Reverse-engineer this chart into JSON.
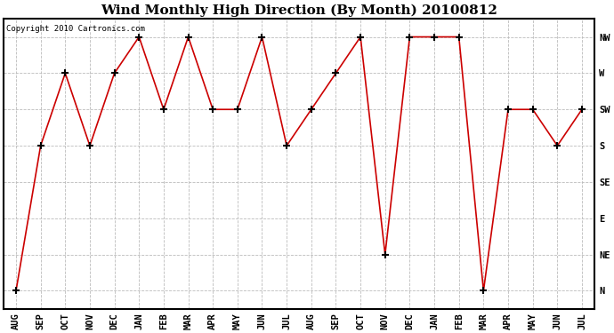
{
  "title": "Wind Monthly High Direction (By Month) 20100812",
  "copyright": "Copyright 2010 Cartronics.com",
  "x_labels": [
    "AUG",
    "SEP",
    "OCT",
    "NOV",
    "DEC",
    "JAN",
    "FEB",
    "MAR",
    "APR",
    "MAY",
    "JUN",
    "JUL",
    "AUG",
    "SEP",
    "OCT",
    "NOV",
    "DEC",
    "JAN",
    "FEB",
    "MAR",
    "APR",
    "MAY",
    "JUN",
    "JUL"
  ],
  "y_labels": [
    "N",
    "NE",
    "E",
    "SE",
    "S",
    "SW",
    "W",
    "NW"
  ],
  "y_values": [
    0,
    1,
    2,
    3,
    4,
    5,
    6,
    7
  ],
  "data_points": [
    0,
    4,
    6,
    4,
    6,
    7,
    5,
    7,
    5,
    5,
    7,
    4,
    5,
    6,
    7,
    1,
    7,
    7,
    7,
    0,
    5,
    5,
    4,
    5
  ],
  "line_color": "#cc0000",
  "marker": "+",
  "marker_color": "#000000",
  "bg_color": "#ffffff",
  "plot_bg_color": "#ffffff",
  "grid_color": "#bbbbbb",
  "title_fontsize": 11,
  "tick_fontsize": 7.5,
  "copyright_fontsize": 6.5
}
